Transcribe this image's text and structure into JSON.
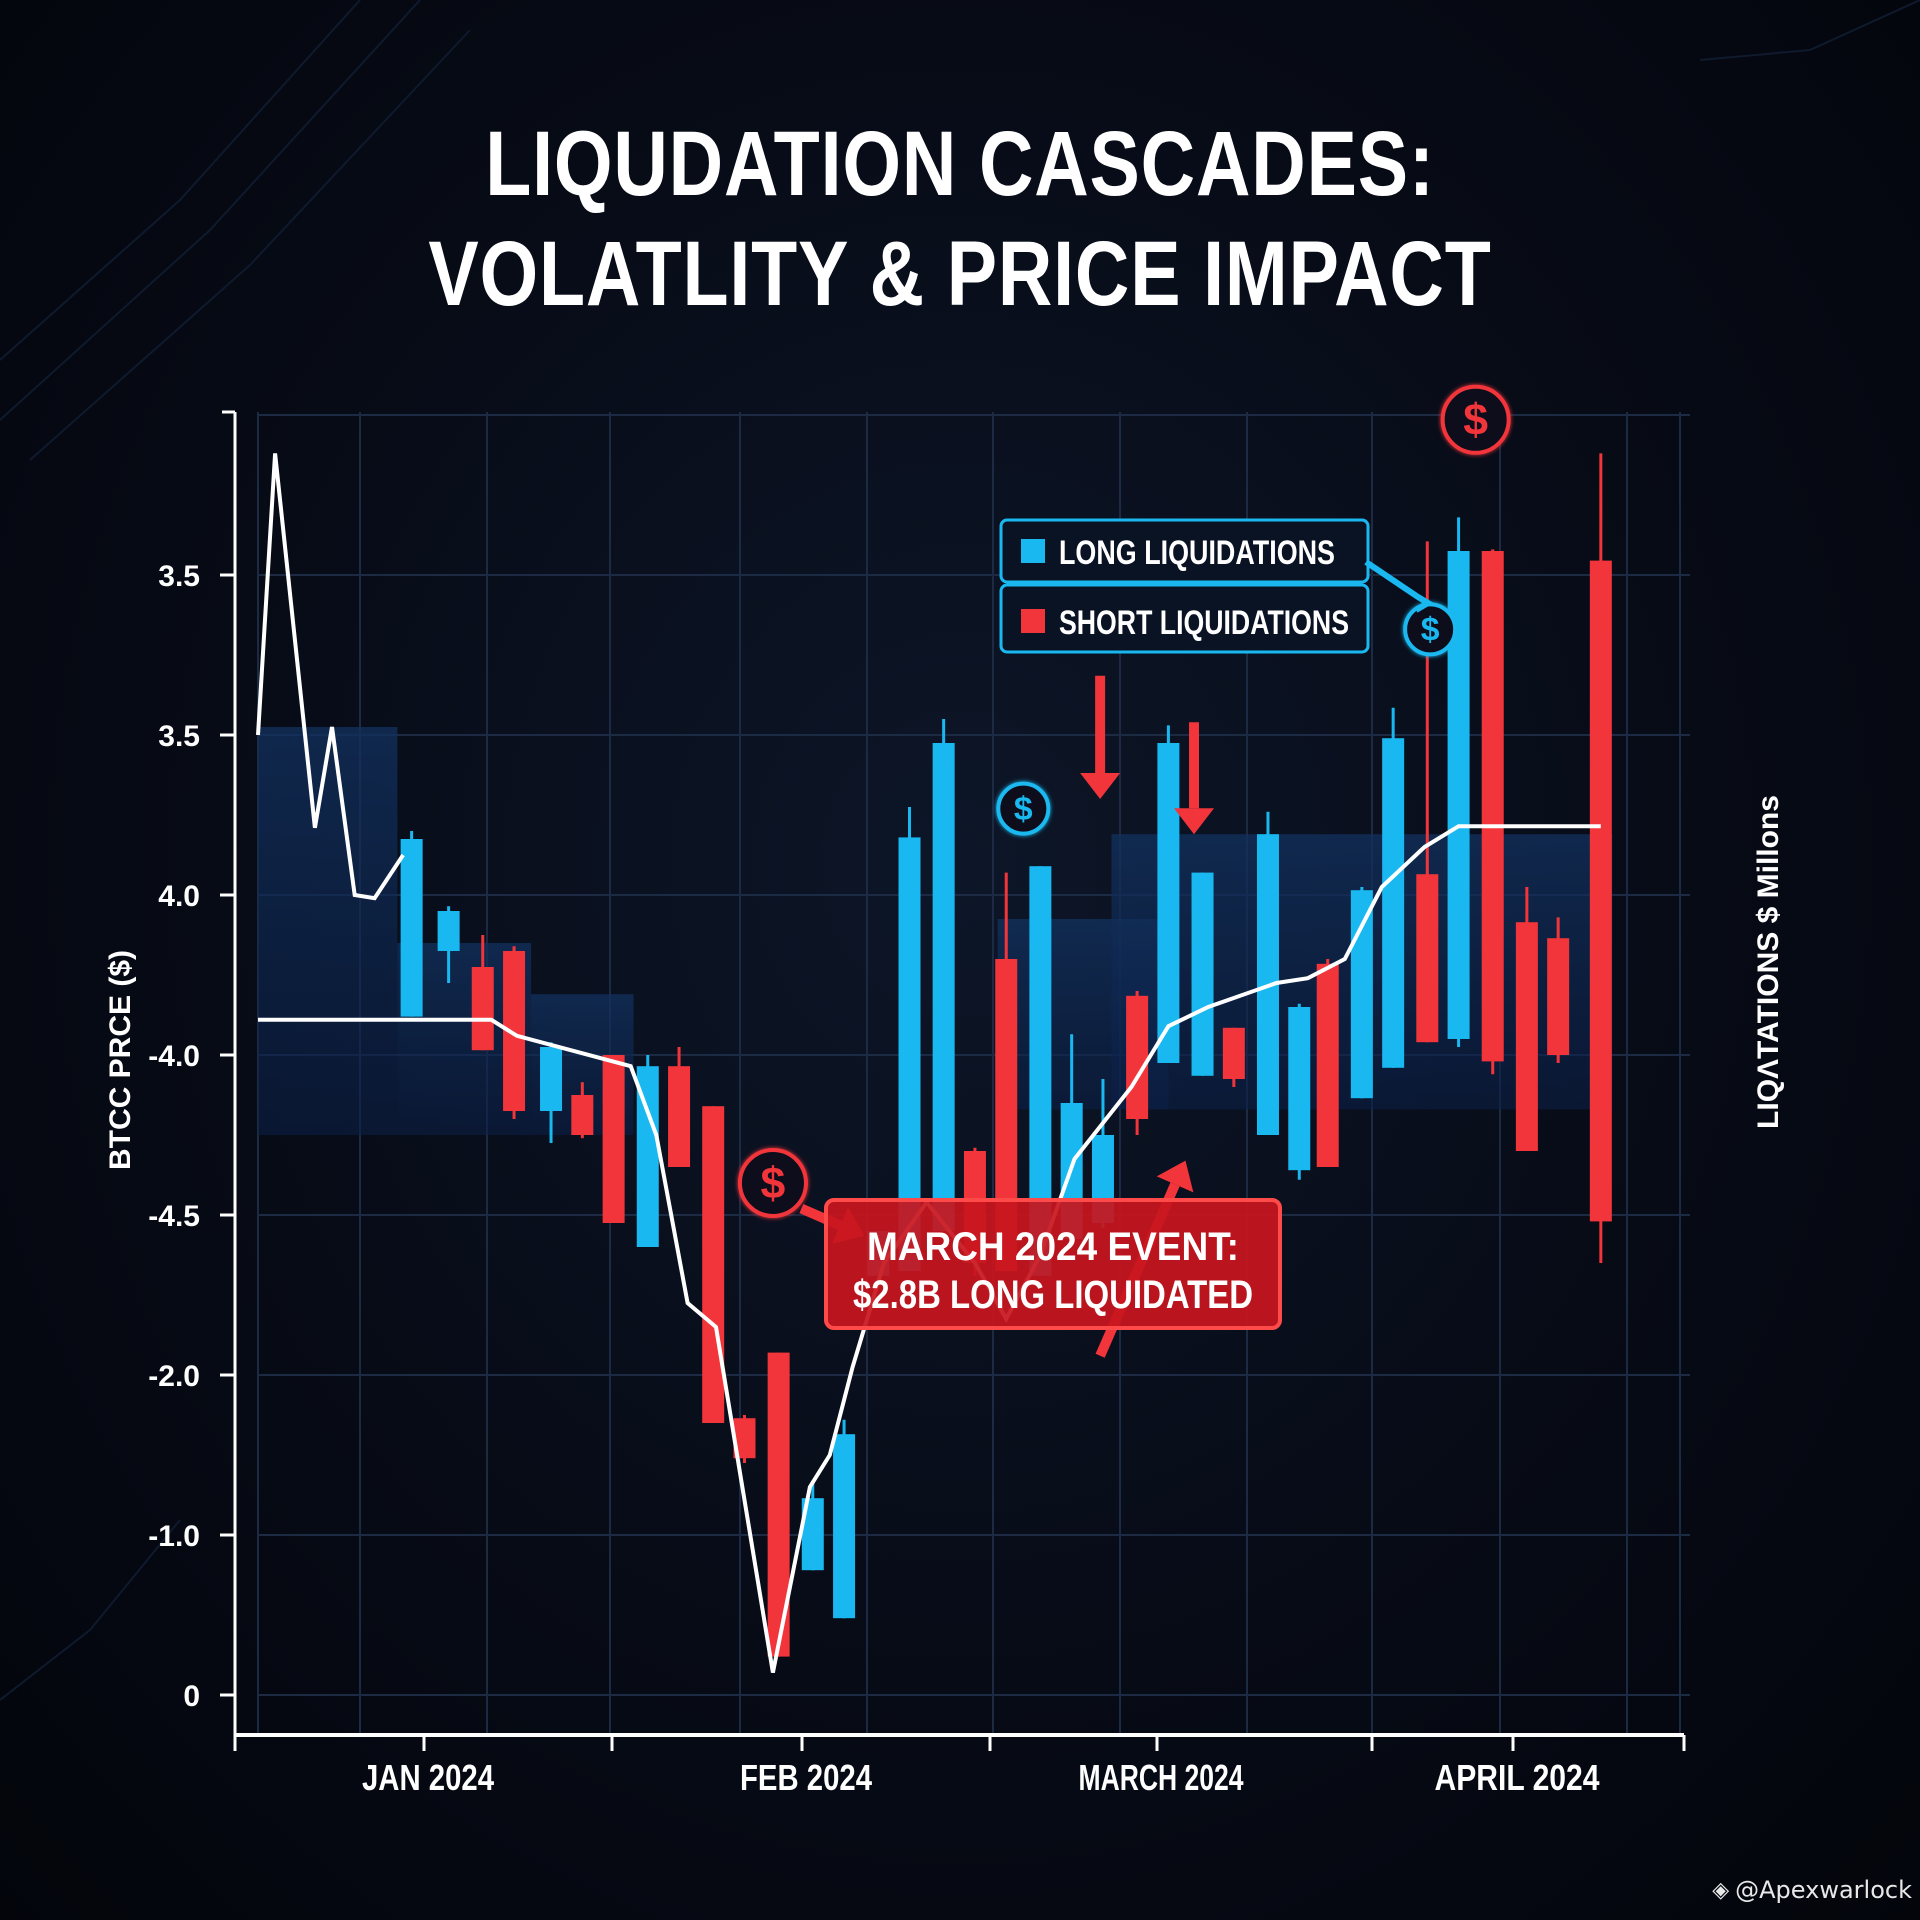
{
  "title": {
    "line1": "LIQUDATION CASCADES:",
    "line2": "VOLATLITY & PRICE IMPACT"
  },
  "watermark": {
    "icon": "binance-diamond-icon",
    "text": "@Apexwarlock"
  },
  "colors": {
    "background": "#05080f",
    "long": "#1ab8f0",
    "short": "#f2353a",
    "price_line": "#ffffff",
    "grid": "#1c2a44",
    "highlight_band": "#0f2a55",
    "callout_bg": "#c8161e",
    "callout_border": "#ff4a4a",
    "legend_border": "#1ab8f0"
  },
  "legend": {
    "items": [
      {
        "label": "LONG LIQUIDATIONS",
        "color_key": "long"
      },
      {
        "label": "SHORT LIQUIDATIONS",
        "color_key": "short"
      }
    ]
  },
  "callout": {
    "line1": "MARCH 2024 EVENT:",
    "line2": "$2.8B LONG LIQUIDATED"
  },
  "chart_data": {
    "type": "candlestick",
    "title": "LIQUDATION CASCADES: VOLATLITY & PRICE IMPACT",
    "xlabel": "",
    "ylabel": "BTCC PRCE ($)",
    "y2label": "LIQΛTATIONS $ Millons",
    "y_tick_labels": [
      "0",
      "-1.0",
      "-2.0",
      "-4.5",
      "-4.0",
      "4.0",
      "3.5",
      "3.5"
    ],
    "y_tick_note": "tick labels as printed, bottom to top; values below are in evenly spaced tick-index units (0 = bottom tick '0', 7 = top tick '3.5')",
    "ylim": [
      -0.2,
      8.0
    ],
    "x_tick_labels": [
      "JAN 2024",
      "FEB 2024",
      "MARCH 2024",
      "APRIL 2024"
    ],
    "x_tick_positions": [
      5.4,
      15.0,
      24.1,
      33.0
    ],
    "xlim": [
      0,
      36.5
    ],
    "grid": true,
    "legend_position": "top-right",
    "series": [
      {
        "name": "Liquidations",
        "candles": [
          {
            "x": 5.4,
            "kind": "long",
            "open": 4.24,
            "close": 5.35,
            "low": 4.24,
            "high": 5.4
          },
          {
            "x": 6.7,
            "kind": "long",
            "open": 4.65,
            "close": 4.9,
            "low": 4.45,
            "high": 4.93
          },
          {
            "x": 7.9,
            "kind": "short",
            "open": 4.55,
            "close": 4.03,
            "low": 4.03,
            "high": 4.75
          },
          {
            "x": 9.0,
            "kind": "short",
            "open": 4.65,
            "close": 3.65,
            "low": 3.6,
            "high": 4.68
          },
          {
            "x": 10.3,
            "kind": "long",
            "open": 3.65,
            "close": 4.05,
            "low": 3.45,
            "high": 4.08
          },
          {
            "x": 11.4,
            "kind": "short",
            "open": 3.75,
            "close": 3.5,
            "low": 3.48,
            "high": 3.83
          },
          {
            "x": 12.5,
            "kind": "short",
            "open": 4.0,
            "close": 2.95,
            "low": 2.95,
            "high": 4.0
          },
          {
            "x": 13.7,
            "kind": "long",
            "open": 2.8,
            "close": 3.93,
            "low": 2.8,
            "high": 4.0
          },
          {
            "x": 14.8,
            "kind": "short",
            "open": 3.93,
            "close": 3.3,
            "low": 3.3,
            "high": 4.05
          },
          {
            "x": 16.0,
            "kind": "short",
            "open": 3.68,
            "close": 1.7,
            "low": 1.7,
            "high": 3.68
          },
          {
            "x": 17.1,
            "kind": "short",
            "open": 1.73,
            "close": 1.48,
            "low": 1.45,
            "high": 1.75
          },
          {
            "x": 18.3,
            "kind": "short",
            "open": 2.14,
            "close": 0.24,
            "low": 0.24,
            "high": 2.14
          },
          {
            "x": 19.5,
            "kind": "long",
            "open": 0.78,
            "close": 1.23,
            "low": 0.78,
            "high": 1.34
          },
          {
            "x": 20.6,
            "kind": "long",
            "open": 0.48,
            "close": 1.63,
            "low": 0.48,
            "high": 1.72
          },
          {
            "x": 21.8,
            "kind": "long",
            "open": 2.62,
            "close": 2.9,
            "low": 2.62,
            "high": 2.9
          },
          {
            "x": 22.9,
            "kind": "long",
            "open": 2.65,
            "close": 5.36,
            "low": 2.65,
            "high": 5.55
          },
          {
            "x": 24.1,
            "kind": "long",
            "open": 2.9,
            "close": 5.95,
            "low": 2.9,
            "high": 6.1
          },
          {
            "x": 25.2,
            "kind": "short",
            "open": 3.4,
            "close": 2.7,
            "low": 2.62,
            "high": 3.42
          },
          {
            "x": 26.3,
            "kind": "short",
            "open": 4.6,
            "close": 2.65,
            "low": 2.65,
            "high": 5.14
          },
          {
            "x": 27.5,
            "kind": "long",
            "open": 2.62,
            "close": 5.18,
            "low": 2.62,
            "high": 5.18
          },
          {
            "x": 28.6,
            "kind": "long",
            "open": 2.85,
            "close": 3.7,
            "low": 2.85,
            "high": 4.13
          },
          {
            "x": 29.7,
            "kind": "long",
            "open": 2.95,
            "close": 3.5,
            "low": 2.92,
            "high": 3.85
          },
          {
            "x": 30.9,
            "kind": "short",
            "open": 4.37,
            "close": 3.6,
            "low": 3.5,
            "high": 4.4
          },
          {
            "x": 32.0,
            "kind": "long",
            "open": 3.95,
            "close": 5.95,
            "low": 3.95,
            "high": 6.06
          },
          {
            "x": 33.2,
            "kind": "long",
            "open": 3.87,
            "close": 5.14,
            "low": 3.87,
            "high": 5.14
          },
          {
            "x": 34.3,
            "kind": "short",
            "open": 4.17,
            "close": 3.85,
            "low": 3.8,
            "high": 4.17
          },
          {
            "x": 35.5,
            "kind": "long",
            "open": 3.5,
            "close": 5.38,
            "low": 3.5,
            "high": 5.52
          },
          {
            "x": 36.6,
            "kind": "long",
            "open": 3.28,
            "close": 4.3,
            "low": 3.22,
            "high": 4.32
          },
          {
            "x": 37.6,
            "kind": "short",
            "open": 4.57,
            "close": 3.3,
            "low": 3.3,
            "high": 4.6
          },
          {
            "x": 38.8,
            "kind": "long",
            "open": 3.73,
            "close": 5.03,
            "low": 3.73,
            "high": 5.05
          },
          {
            "x": 39.9,
            "kind": "long",
            "open": 3.92,
            "close": 5.98,
            "low": 3.92,
            "high": 6.17
          },
          {
            "x": 41.1,
            "kind": "short",
            "open": 5.13,
            "close": 4.08,
            "low": 4.08,
            "high": 7.21
          },
          {
            "x": 42.2,
            "kind": "long",
            "open": 4.1,
            "close": 7.15,
            "low": 4.05,
            "high": 7.36
          },
          {
            "x": 43.4,
            "kind": "short",
            "open": 7.15,
            "close": 3.96,
            "low": 3.88,
            "high": 7.16
          },
          {
            "x": 44.6,
            "kind": "short",
            "open": 4.83,
            "close": 3.4,
            "low": 3.4,
            "high": 5.05
          },
          {
            "x": 45.7,
            "kind": "short",
            "open": 4.73,
            "close": 4.0,
            "low": 3.95,
            "high": 4.86
          },
          {
            "x": 47.2,
            "kind": "short",
            "open": 7.09,
            "close": 2.96,
            "low": 2.7,
            "high": 7.76
          }
        ]
      },
      {
        "name": "BTC Price (white line)",
        "type": "line",
        "points_note": "first segment is the early-January spike; second segment is the main price path",
        "segments": [
          [
            [
              0.0,
              6.0
            ],
            [
              0.6,
              7.76
            ],
            [
              2.0,
              5.42
            ],
            [
              2.6,
              6.05
            ],
            [
              3.4,
              5.0
            ],
            [
              4.1,
              4.98
            ],
            [
              5.1,
              5.25
            ]
          ],
          [
            [
              0.0,
              4.22
            ],
            [
              8.2,
              4.22
            ],
            [
              9.1,
              4.12
            ],
            [
              13.1,
              3.93
            ],
            [
              14.0,
              3.5
            ],
            [
              15.1,
              2.45
            ],
            [
              16.1,
              2.3
            ],
            [
              18.1,
              0.14
            ],
            [
              19.4,
              1.3
            ],
            [
              20.1,
              1.5
            ],
            [
              20.9,
              2.05
            ],
            [
              22.0,
              2.7
            ],
            [
              23.5,
              3.08
            ],
            [
              25.2,
              2.7
            ],
            [
              26.3,
              2.35
            ],
            [
              27.5,
              2.75
            ],
            [
              28.7,
              3.35
            ],
            [
              30.7,
              3.8
            ],
            [
              32.0,
              4.18
            ],
            [
              33.4,
              4.3
            ],
            [
              35.8,
              4.45
            ],
            [
              36.9,
              4.48
            ],
            [
              38.2,
              4.6
            ],
            [
              39.5,
              5.05
            ],
            [
              41.0,
              5.3
            ],
            [
              42.2,
              5.43
            ],
            [
              47.2,
              5.43
            ]
          ]
        ]
      }
    ],
    "highlight_bands": [
      {
        "x": [
          0.0,
          4.9
        ],
        "y": [
          3.5,
          6.05
        ]
      },
      {
        "x": [
          4.9,
          9.6
        ],
        "y": [
          3.5,
          4.7
        ]
      },
      {
        "x": [
          9.6,
          13.2
        ],
        "y": [
          3.5,
          4.38
        ]
      },
      {
        "x": [
          26.0,
          32.0
        ],
        "y": [
          3.66,
          4.85
        ]
      },
      {
        "x": [
          30.0,
          47.6
        ],
        "y": [
          3.66,
          5.38
        ]
      }
    ],
    "markers": [
      {
        "type": "dollar-circle",
        "color_key": "long",
        "x": 26.9,
        "y": 5.54
      },
      {
        "type": "dollar-circle",
        "color_key": "short",
        "x": 18.1,
        "y": 3.2
      },
      {
        "type": "dollar-circle",
        "color_key": "long",
        "x": 41.2,
        "y": 6.66
      },
      {
        "type": "dollar-circle",
        "color_key": "short",
        "x": 42.8,
        "y": 7.97
      }
    ],
    "arrows": [
      {
        "color_key": "short",
        "from": [
          19.1,
          3.04
        ],
        "to": [
          21.3,
          2.87
        ]
      },
      {
        "color_key": "short",
        "from": [
          29.6,
          6.37
        ],
        "to": [
          29.6,
          5.6
        ]
      },
      {
        "color_key": "short",
        "from": [
          32.9,
          6.08
        ],
        "to": [
          32.9,
          5.38
        ]
      },
      {
        "color_key": "short",
        "from": [
          29.6,
          2.12
        ],
        "to": [
          32.6,
          3.34
        ]
      },
      {
        "color_key": "long",
        "from": [
          37.8,
          6.55
        ],
        "to": [
          40.5,
          6.35
        ]
      }
    ],
    "annotations": [
      {
        "text": "MARCH 2024 EVENT: $2.8B LONG LIQUIDATED",
        "anchor": [
          26.2,
          2.48
        ]
      }
    ]
  }
}
